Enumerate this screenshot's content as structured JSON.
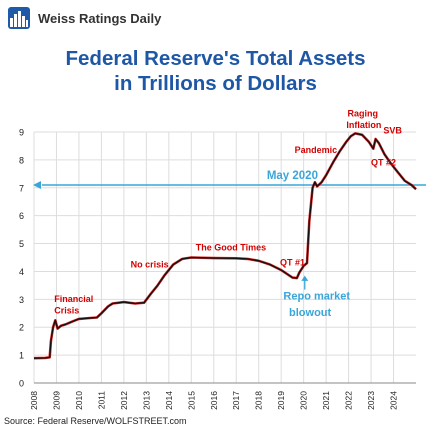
{
  "brand": {
    "name": "Weiss Ratings Daily",
    "logo_icon": "city-skyline-icon"
  },
  "title_line1": "Federal Reserve's Total Assets",
  "title_line2": "in Trillions of Dollars",
  "source": "Source: Federal Reserve/WOLFSTREET.com",
  "colors": {
    "line": "#111111",
    "highlight": "#d40000",
    "annotation": "#d40000",
    "reference": "#3aa6d8",
    "title": "#1d57a6",
    "grid": "#dddddd"
  },
  "chart_data": {
    "type": "line",
    "title": "Federal Reserve's Total Assets in Trillions of Dollars",
    "xlabel": "",
    "ylabel": "",
    "xlim": [
      2008,
      2025
    ],
    "ylim": [
      0,
      9
    ],
    "yticks": [
      0,
      1,
      2,
      3,
      4,
      5,
      6,
      7,
      8,
      9
    ],
    "xticks": [
      "2008",
      "2009",
      "2010",
      "2011",
      "2012",
      "2013",
      "2014",
      "2015",
      "2016",
      "2017",
      "2018",
      "2019",
      "2020",
      "2021",
      "2022",
      "2023",
      "2024"
    ],
    "grid": true,
    "series": [
      {
        "points": [
          [
            2008.0,
            0.89
          ],
          [
            2008.5,
            0.9
          ],
          [
            2008.7,
            0.92
          ],
          [
            2008.75,
            1.5
          ],
          [
            2008.85,
            2.0
          ],
          [
            2008.95,
            2.25
          ],
          [
            2009.05,
            1.95
          ],
          [
            2009.2,
            2.05
          ],
          [
            2009.4,
            2.1
          ],
          [
            2009.7,
            2.2
          ],
          [
            2010.0,
            2.3
          ],
          [
            2010.5,
            2.33
          ],
          [
            2010.8,
            2.35
          ],
          [
            2011.0,
            2.5
          ],
          [
            2011.3,
            2.75
          ],
          [
            2011.5,
            2.85
          ],
          [
            2012.0,
            2.9
          ],
          [
            2012.5,
            2.85
          ],
          [
            2012.9,
            2.88
          ],
          [
            2013.2,
            3.2
          ],
          [
            2013.5,
            3.5
          ],
          [
            2013.8,
            3.85
          ],
          [
            2014.2,
            4.25
          ],
          [
            2014.6,
            4.45
          ],
          [
            2015.0,
            4.5
          ],
          [
            2016.0,
            4.48
          ],
          [
            2017.0,
            4.47
          ],
          [
            2017.5,
            4.45
          ],
          [
            2018.0,
            4.38
          ],
          [
            2018.5,
            4.25
          ],
          [
            2019.0,
            4.05
          ],
          [
            2019.5,
            3.78
          ],
          [
            2019.7,
            3.76
          ],
          [
            2019.8,
            3.95
          ],
          [
            2020.0,
            4.2
          ],
          [
            2020.15,
            4.3
          ],
          [
            2020.25,
            5.8
          ],
          [
            2020.4,
            7.0
          ],
          [
            2020.5,
            7.2
          ],
          [
            2020.6,
            7.05
          ],
          [
            2020.8,
            7.2
          ],
          [
            2021.0,
            7.45
          ],
          [
            2021.3,
            7.9
          ],
          [
            2021.6,
            8.3
          ],
          [
            2021.9,
            8.65
          ],
          [
            2022.1,
            8.85
          ],
          [
            2022.3,
            8.95
          ],
          [
            2022.6,
            8.9
          ],
          [
            2022.9,
            8.65
          ],
          [
            2023.1,
            8.4
          ],
          [
            2023.2,
            8.75
          ],
          [
            2023.35,
            8.6
          ],
          [
            2023.6,
            8.2
          ],
          [
            2023.9,
            7.85
          ],
          [
            2024.2,
            7.55
          ],
          [
            2024.5,
            7.25
          ],
          [
            2024.8,
            7.1
          ],
          [
            2025.0,
            6.95
          ]
        ]
      }
    ],
    "reference_lines": [
      {
        "y": 7.1,
        "label": "May 2020"
      }
    ],
    "annotations": [
      {
        "text": "Financial",
        "x": 2008.9,
        "y": 2.9
      },
      {
        "text": "Crisis",
        "x": 2008.9,
        "y": 2.5
      },
      {
        "text": "No crisis",
        "x": 2012.3,
        "y": 4.15
      },
      {
        "text": "The Good Times",
        "x": 2015.2,
        "y": 4.75
      },
      {
        "text": "QT #1",
        "x": 2018.95,
        "y": 4.22
      },
      {
        "text": "Repo market",
        "x": 2019.1,
        "y": 3.0
      },
      {
        "text": "blowout",
        "x": 2019.35,
        "y": 2.4
      },
      {
        "text": "Pandemic",
        "x": 2019.6,
        "y": 8.25
      },
      {
        "text": "Raging",
        "x": 2021.95,
        "y": 9.55
      },
      {
        "text": "Inflation",
        "x": 2021.9,
        "y": 9.15
      },
      {
        "text": "SVB",
        "x": 2023.55,
        "y": 8.95
      },
      {
        "text": "QT #2",
        "x": 2023.0,
        "y": 7.8
      }
    ]
  }
}
